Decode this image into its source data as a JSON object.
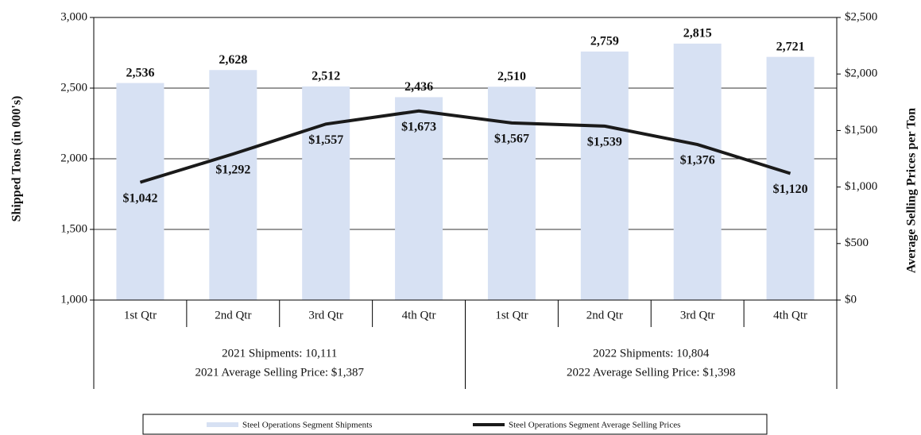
{
  "chart_data": {
    "type": "bar",
    "categories": [
      "1st Qtr",
      "2nd Qtr",
      "3rd Qtr",
      "4th Qtr",
      "1st Qtr",
      "2nd Qtr",
      "3rd Qtr",
      "4th Qtr"
    ],
    "x_groups": [
      [
        "2021 Shipments: 10,111",
        "2021 Average Selling Price: $1,387"
      ],
      [
        "2022 Shipments: 10,804",
        "2022 Average Selling Price: $1,398"
      ]
    ],
    "series": [
      {
        "name": "Steel Operations Segment Shipments",
        "type": "bar",
        "color": "#d7e1f3",
        "values": [
          2536,
          2628,
          2512,
          2436,
          2510,
          2759,
          2815,
          2721
        ],
        "value_labels": [
          "2,536",
          "2,628",
          "2,512",
          "2,436",
          "2,510",
          "2,759",
          "2,815",
          "2,721"
        ]
      },
      {
        "name": "Steel Operations Segment Average Selling Prices",
        "type": "line",
        "axis": "y2",
        "color": "#1a1a1a",
        "values": [
          1042,
          1292,
          1557,
          1673,
          1567,
          1539,
          1376,
          1120
        ],
        "value_labels": [
          "$1,042",
          "$1,292",
          "$1,557",
          "$1,673",
          "$1,567",
          "$1,539",
          "$1,376",
          "$1,120"
        ]
      }
    ],
    "ylabel": "Shipped Tons (in 000's)",
    "y2label": "Average Selling Prices per Ton",
    "ylim": [
      1000,
      3000
    ],
    "yticks": [
      {
        "value": 1000,
        "label": "1,000"
      },
      {
        "value": 1500,
        "label": "1,500"
      },
      {
        "value": 2000,
        "label": "2,000"
      },
      {
        "value": 2500,
        "label": "2,500"
      },
      {
        "value": 3000,
        "label": "3,000"
      }
    ],
    "y2lim": [
      0,
      2500
    ],
    "y2ticks": [
      {
        "value": 0,
        "label": "$0"
      },
      {
        "value": 500,
        "label": "$500"
      },
      {
        "value": 1000,
        "label": "$1,000"
      },
      {
        "value": 1500,
        "label": "$1,500"
      },
      {
        "value": 2000,
        "label": "$2,000"
      },
      {
        "value": 2500,
        "label": "$2,500"
      }
    ],
    "grid": true,
    "legend": "bottom"
  }
}
